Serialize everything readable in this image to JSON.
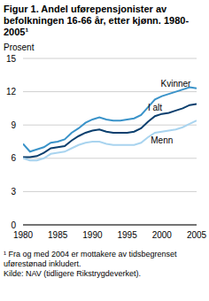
{
  "chart_data": {
    "type": "line",
    "title": "Figur 1. Andel uførepensjonister av befolkningen 16-66 år, etter kjønn. 1980-2005¹",
    "y_label": "Prosent",
    "footnote": "¹ Fra og med 2004 er mottakere av tidsbegrenset uførestønad inkludert.",
    "source": "Kilde: NAV (tidligere Rikstrygdeverket).",
    "x": [
      1980,
      1981,
      1982,
      1983,
      1984,
      1985,
      1986,
      1987,
      1988,
      1989,
      1990,
      1991,
      1992,
      1993,
      1994,
      1995,
      1996,
      1997,
      1998,
      1999,
      2000,
      2001,
      2002,
      2003,
      2004,
      2005
    ],
    "series": [
      {
        "name": "Kvinner",
        "color": "#3a93c9",
        "values": [
          7.3,
          6.6,
          6.8,
          7.0,
          7.4,
          7.5,
          7.7,
          8.3,
          8.7,
          9.2,
          9.5,
          9.7,
          9.5,
          9.4,
          9.4,
          9.5,
          9.6,
          9.9,
          10.6,
          11.3,
          11.6,
          11.8,
          12.0,
          12.2,
          12.4,
          12.3
        ]
      },
      {
        "name": "I alt",
        "color": "#0b3f6e",
        "values": [
          6.1,
          6.1,
          6.2,
          6.5,
          6.9,
          7.0,
          7.1,
          7.6,
          8.0,
          8.3,
          8.5,
          8.6,
          8.4,
          8.3,
          8.3,
          8.3,
          8.4,
          8.7,
          9.3,
          9.8,
          10.0,
          10.1,
          10.3,
          10.5,
          10.8,
          10.9
        ]
      },
      {
        "name": "Menn",
        "color": "#a9d4ef",
        "values": [
          6.0,
          5.8,
          5.8,
          6.0,
          6.4,
          6.5,
          6.6,
          6.9,
          7.2,
          7.4,
          7.5,
          7.5,
          7.3,
          7.2,
          7.2,
          7.2,
          7.2,
          7.4,
          7.9,
          8.3,
          8.4,
          8.5,
          8.6,
          8.8,
          9.1,
          9.4
        ]
      }
    ],
    "xlim": [
      1980,
      2005
    ],
    "xticks": [
      1980,
      1985,
      1990,
      1995,
      2000,
      2005
    ],
    "ylim": [
      0,
      15
    ],
    "yticks": [
      0,
      3,
      6,
      9,
      12,
      15
    ],
    "grid": true
  }
}
